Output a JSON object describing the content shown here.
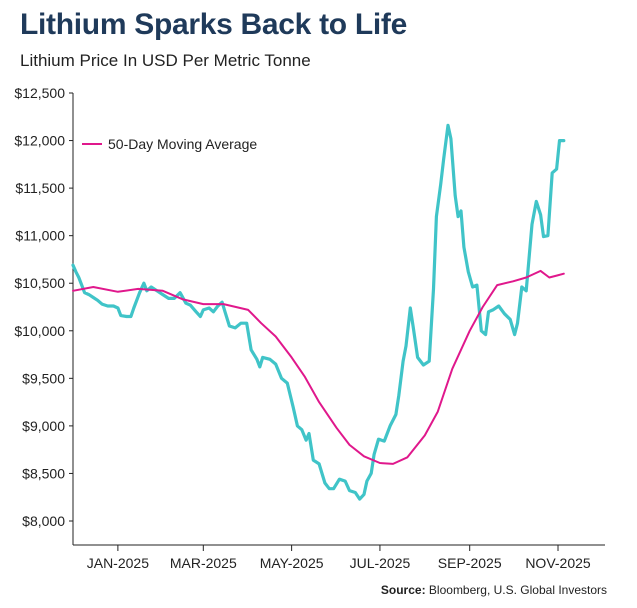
{
  "header": {
    "title": "Lithium Sparks Back to Life",
    "subtitle": "Lithium Price In USD Per Metric Tonne"
  },
  "footer": {
    "source_label": "Source:",
    "source_text": "Bloomberg, U.S. Global Investors"
  },
  "colors": {
    "price_line": "#40c4c8",
    "ma_line": "#e0188c",
    "axis": "#222222",
    "text": "#222222",
    "title": "#1f3a5a"
  },
  "chart_data": {
    "type": "line",
    "title": "Lithium Sparks Back to Life",
    "subtitle": "Lithium Price In USD Per Metric Tonne",
    "xlabel": "",
    "ylabel": "",
    "ylim": [
      8000,
      12500
    ],
    "xlim": [
      "2024-12-01",
      "2025-11-30"
    ],
    "grid": false,
    "legend_position": "top-left",
    "y_ticks": [
      8000,
      8500,
      9000,
      9500,
      10000,
      10500,
      11000,
      11500,
      12000,
      12500
    ],
    "y_tick_labels": [
      "$8,000",
      "$8,500",
      "$9,000",
      "$9,500",
      "$10,000",
      "$10,500",
      "$11,000",
      "$11,500",
      "$12,000",
      "$12,500"
    ],
    "x_tick_labels": [
      "JAN-2025",
      "MAR-2025",
      "MAY-2025",
      "JUL-2025",
      "SEP-2025",
      "NOV-2025"
    ],
    "x_tick_dates": [
      "2025-01-01",
      "2025-03-01",
      "2025-05-01",
      "2025-07-01",
      "2025-09-01",
      "2025-11-01"
    ],
    "series": [
      {
        "name": "",
        "role": "price",
        "points": [
          [
            "2024-12-01",
            10690
          ],
          [
            "2024-12-03",
            10620
          ],
          [
            "2024-12-05",
            10560
          ],
          [
            "2024-12-07",
            10480
          ],
          [
            "2024-12-09",
            10400
          ],
          [
            "2024-12-12",
            10380
          ],
          [
            "2024-12-15",
            10350
          ],
          [
            "2024-12-18",
            10320
          ],
          [
            "2024-12-21",
            10280
          ],
          [
            "2024-12-25",
            10260
          ],
          [
            "2024-12-29",
            10260
          ],
          [
            "2025-01-01",
            10240
          ],
          [
            "2025-01-03",
            10160
          ],
          [
            "2025-01-07",
            10150
          ],
          [
            "2025-01-10",
            10150
          ],
          [
            "2025-01-12",
            10240
          ],
          [
            "2025-01-16",
            10400
          ],
          [
            "2025-01-19",
            10500
          ],
          [
            "2025-01-21",
            10420
          ],
          [
            "2025-01-24",
            10460
          ],
          [
            "2025-01-28",
            10420
          ],
          [
            "2025-02-01",
            10380
          ],
          [
            "2025-02-05",
            10340
          ],
          [
            "2025-02-09",
            10340
          ],
          [
            "2025-02-13",
            10400
          ],
          [
            "2025-02-17",
            10290
          ],
          [
            "2025-02-20",
            10270
          ],
          [
            "2025-02-24",
            10200
          ],
          [
            "2025-02-27",
            10150
          ],
          [
            "2025-03-01",
            10220
          ],
          [
            "2025-03-05",
            10240
          ],
          [
            "2025-03-08",
            10200
          ],
          [
            "2025-03-11",
            10260
          ],
          [
            "2025-03-14",
            10300
          ],
          [
            "2025-03-16",
            10200
          ],
          [
            "2025-03-19",
            10050
          ],
          [
            "2025-03-23",
            10030
          ],
          [
            "2025-03-27",
            10080
          ],
          [
            "2025-03-31",
            10080
          ],
          [
            "2025-04-03",
            9800
          ],
          [
            "2025-04-07",
            9700
          ],
          [
            "2025-04-09",
            9620
          ],
          [
            "2025-04-11",
            9720
          ],
          [
            "2025-04-16",
            9700
          ],
          [
            "2025-04-20",
            9650
          ],
          [
            "2025-04-24",
            9500
          ],
          [
            "2025-04-28",
            9450
          ],
          [
            "2025-05-02",
            9200
          ],
          [
            "2025-05-05",
            9000
          ],
          [
            "2025-05-08",
            8960
          ],
          [
            "2025-05-11",
            8850
          ],
          [
            "2025-05-13",
            8920
          ],
          [
            "2025-05-16",
            8640
          ],
          [
            "2025-05-20",
            8600
          ],
          [
            "2025-05-24",
            8400
          ],
          [
            "2025-05-27",
            8340
          ],
          [
            "2025-05-30",
            8340
          ],
          [
            "2025-06-03",
            8440
          ],
          [
            "2025-06-07",
            8420
          ],
          [
            "2025-06-10",
            8320
          ],
          [
            "2025-06-14",
            8300
          ],
          [
            "2025-06-17",
            8230
          ],
          [
            "2025-06-20",
            8280
          ],
          [
            "2025-06-22",
            8420
          ],
          [
            "2025-06-25",
            8500
          ],
          [
            "2025-06-27",
            8700
          ],
          [
            "2025-06-30",
            8860
          ],
          [
            "2025-07-04",
            8840
          ],
          [
            "2025-07-08",
            9000
          ],
          [
            "2025-07-12",
            9120
          ],
          [
            "2025-07-14",
            9320
          ],
          [
            "2025-07-17",
            9680
          ],
          [
            "2025-07-19",
            9840
          ],
          [
            "2025-07-22",
            10240
          ],
          [
            "2025-07-24",
            10040
          ],
          [
            "2025-07-27",
            9720
          ],
          [
            "2025-07-31",
            9640
          ],
          [
            "2025-08-04",
            9680
          ],
          [
            "2025-08-07",
            10440
          ],
          [
            "2025-08-09",
            11200
          ],
          [
            "2025-08-12",
            11540
          ],
          [
            "2025-08-14",
            11800
          ],
          [
            "2025-08-17",
            12160
          ],
          [
            "2025-08-19",
            12020
          ],
          [
            "2025-08-22",
            11420
          ],
          [
            "2025-08-24",
            11200
          ],
          [
            "2025-08-26",
            11260
          ],
          [
            "2025-08-28",
            10880
          ],
          [
            "2025-08-31",
            10620
          ],
          [
            "2025-09-03",
            10460
          ],
          [
            "2025-09-06",
            10480
          ],
          [
            "2025-09-09",
            10000
          ],
          [
            "2025-09-12",
            9960
          ],
          [
            "2025-09-14",
            10200
          ],
          [
            "2025-09-17",
            10220
          ],
          [
            "2025-09-21",
            10260
          ],
          [
            "2025-09-25",
            10180
          ],
          [
            "2025-09-29",
            10120
          ],
          [
            "2025-10-02",
            9960
          ],
          [
            "2025-10-04",
            10080
          ],
          [
            "2025-10-07",
            10460
          ],
          [
            "2025-10-10",
            10420
          ],
          [
            "2025-10-14",
            11120
          ],
          [
            "2025-10-17",
            11360
          ],
          [
            "2025-10-20",
            11220
          ],
          [
            "2025-10-22",
            10990
          ],
          [
            "2025-10-25",
            11000
          ],
          [
            "2025-10-28",
            11660
          ],
          [
            "2025-10-31",
            11700
          ],
          [
            "2025-11-02",
            12000
          ],
          [
            "2025-11-05",
            12000
          ]
        ]
      },
      {
        "name": "50-Day Moving Average",
        "role": "moving_average",
        "points": [
          [
            "2024-12-01",
            10420
          ],
          [
            "2024-12-15",
            10460
          ],
          [
            "2025-01-01",
            10410
          ],
          [
            "2025-01-15",
            10440
          ],
          [
            "2025-02-01",
            10420
          ],
          [
            "2025-02-15",
            10330
          ],
          [
            "2025-03-01",
            10280
          ],
          [
            "2025-03-15",
            10280
          ],
          [
            "2025-04-01",
            10220
          ],
          [
            "2025-04-10",
            10080
          ],
          [
            "2025-04-20",
            9940
          ],
          [
            "2025-05-01",
            9720
          ],
          [
            "2025-05-10",
            9520
          ],
          [
            "2025-05-20",
            9250
          ],
          [
            "2025-06-01",
            8980
          ],
          [
            "2025-06-10",
            8800
          ],
          [
            "2025-06-20",
            8680
          ],
          [
            "2025-07-01",
            8610
          ],
          [
            "2025-07-10",
            8600
          ],
          [
            "2025-07-20",
            8670
          ],
          [
            "2025-08-01",
            8900
          ],
          [
            "2025-08-10",
            9150
          ],
          [
            "2025-08-20",
            9600
          ],
          [
            "2025-09-01",
            10000
          ],
          [
            "2025-09-10",
            10250
          ],
          [
            "2025-09-20",
            10480
          ],
          [
            "2025-10-01",
            10520
          ],
          [
            "2025-10-10",
            10560
          ],
          [
            "2025-10-20",
            10630
          ],
          [
            "2025-10-26",
            10560
          ],
          [
            "2025-10-31",
            10580
          ],
          [
            "2025-11-05",
            10600
          ]
        ]
      }
    ]
  }
}
